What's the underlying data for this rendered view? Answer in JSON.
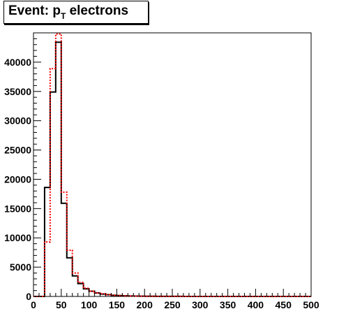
{
  "chart_data": {
    "type": "histogram",
    "title": {
      "main": "Event: p",
      "sub": "T",
      "rest": " electrons"
    },
    "xlim": [
      0,
      500
    ],
    "ylim": [
      0,
      45000
    ],
    "bin_width": 10,
    "x_ticks": [
      0,
      50,
      100,
      150,
      200,
      250,
      300,
      350,
      400,
      450,
      500
    ],
    "y_ticks": [
      0,
      5000,
      10000,
      15000,
      20000,
      25000,
      30000,
      35000,
      40000
    ],
    "x_tick_labels": [
      "0",
      "50",
      "100",
      "150",
      "200",
      "250",
      "300",
      "350",
      "400",
      "450",
      "500"
    ],
    "y_tick_labels": [
      "0",
      "5000",
      "10000",
      "15000",
      "20000",
      "25000",
      "30000",
      "35000",
      "40000"
    ],
    "grid": false,
    "series": [
      {
        "color": "#000000",
        "style": "solid",
        "bin_edges": [
          0,
          10,
          20,
          30,
          40,
          50,
          60,
          70,
          80,
          90,
          100,
          110,
          120,
          130,
          140,
          150,
          160,
          170,
          180,
          190,
          200,
          210,
          220,
          230,
          240,
          250,
          260,
          270,
          280,
          290,
          300,
          310,
          320,
          330,
          340,
          350,
          360,
          370,
          380,
          390,
          400,
          410,
          420,
          430,
          440,
          450,
          460,
          470,
          480,
          490,
          500
        ],
        "values": [
          0,
          0,
          18600,
          34900,
          43400,
          15900,
          6600,
          3500,
          2200,
          1300,
          900,
          600,
          400,
          300,
          200,
          150,
          100,
          80,
          60,
          40,
          30,
          25,
          20,
          15,
          10,
          10,
          8,
          6,
          5,
          4,
          3,
          3,
          2,
          2,
          2,
          1,
          1,
          1,
          1,
          1,
          1,
          1,
          0,
          0,
          0,
          0,
          0,
          0,
          0,
          0
        ]
      },
      {
        "color": "#ff0000",
        "style": "dotted",
        "bin_edges": [
          0,
          10,
          20,
          30,
          40,
          50,
          60,
          70,
          80,
          90,
          100,
          110,
          120,
          130,
          140,
          150,
          160,
          170,
          180,
          190,
          200,
          210,
          220,
          230,
          240,
          250,
          260,
          270,
          280,
          290,
          300,
          310,
          320,
          330,
          340,
          350,
          360,
          370,
          380,
          390,
          400,
          410,
          420,
          430,
          440,
          450,
          460,
          470,
          480,
          490,
          500
        ],
        "values": [
          0,
          0,
          9300,
          38900,
          44800,
          17800,
          7900,
          4000,
          2400,
          1400,
          900,
          600,
          450,
          320,
          220,
          160,
          110,
          80,
          60,
          40,
          30,
          25,
          20,
          15,
          10,
          10,
          8,
          6,
          5,
          4,
          3,
          3,
          2,
          2,
          2,
          1,
          1,
          1,
          1,
          1,
          1,
          1,
          0,
          0,
          0,
          0,
          0,
          0,
          0,
          0
        ]
      }
    ]
  }
}
